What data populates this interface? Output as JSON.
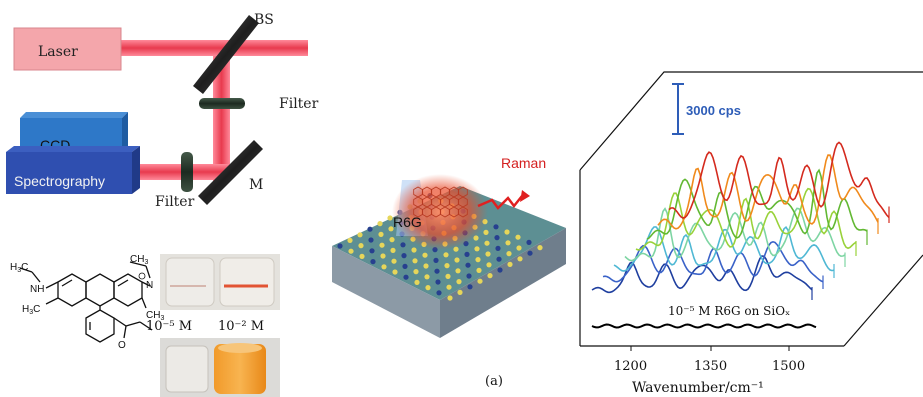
{
  "setup": {
    "laser_label": "Laser",
    "bs_label": "BS",
    "filter_top_label": "Filter",
    "ccd_label": "CCD",
    "spectrograph_label": "Spectrography",
    "filter_bottom_label": "Filter",
    "mirror_label": "M"
  },
  "molecule": {
    "ch3_top_left": "H",
    "ch3_top_right": "CH",
    "ch3_sub": "3",
    "nh_left": "NH",
    "nh_right": "N",
    "h3c_left": "H",
    "h3c_right": "CH",
    "ester": "O"
  },
  "vials": {
    "low_conc": "10⁻⁵ M",
    "high_conc": "10⁻² M"
  },
  "substrate": {
    "molecule_label": "R6G",
    "raman_label": "Raman"
  },
  "panel_label": "(a)",
  "chart_data": {
    "type": "line",
    "scale_bar_label": "3000 cps",
    "x_ticks": [
      "1200",
      "1350",
      "1500"
    ],
    "xlabel": "Wavenumber/cm⁻¹",
    "reference_label": "10⁻⁵ M R6G on SiOₓ",
    "series": [
      {
        "color": "#1f3f9f"
      },
      {
        "color": "#3a62c8"
      },
      {
        "color": "#4fb8d4"
      },
      {
        "color": "#7ed5a3"
      },
      {
        "color": "#99d23a"
      },
      {
        "color": "#62b833"
      },
      {
        "color": "#f08a1c"
      },
      {
        "color": "#d42a1e"
      }
    ],
    "reference_color": "#000000",
    "scale_bar_color": "#2e5db8"
  }
}
